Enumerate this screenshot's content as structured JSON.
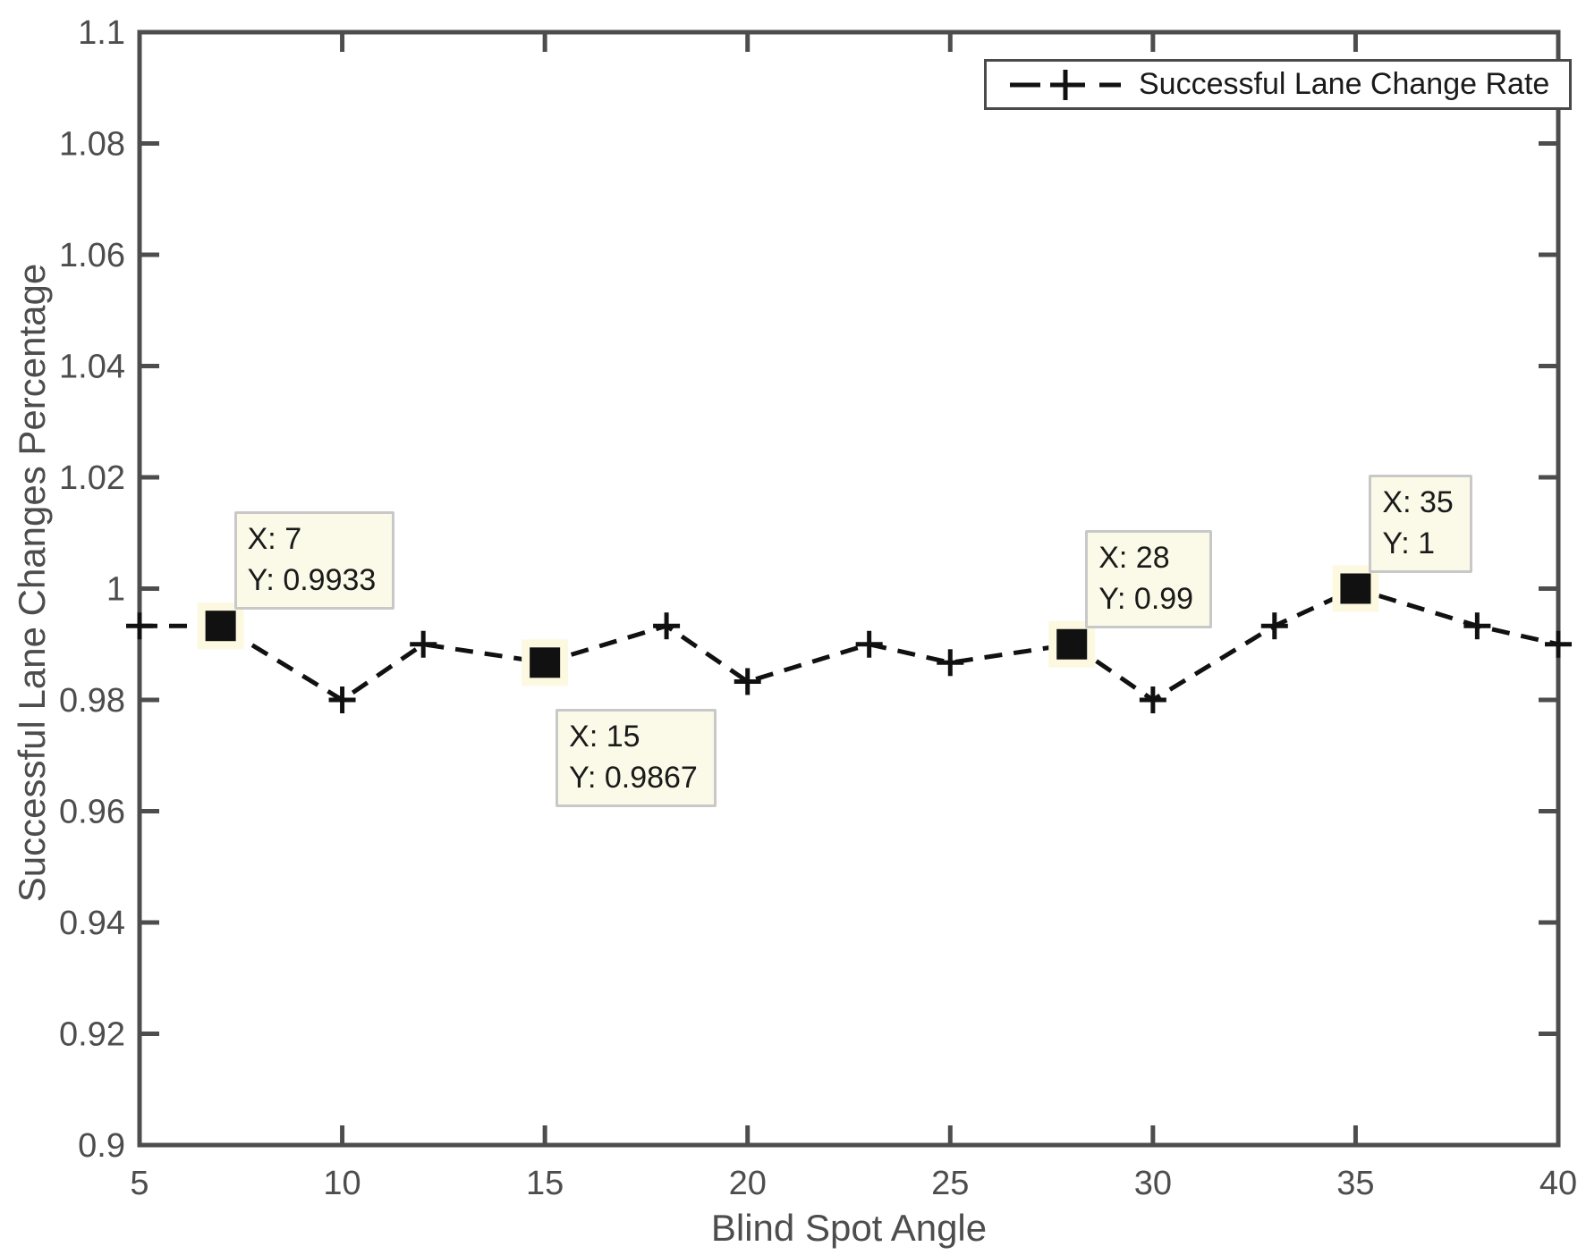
{
  "figure": {
    "background": "#ffffff",
    "axis_color": "#4d4d4d",
    "line_color": "#111111",
    "datatip_bg": "#fbfae8",
    "datatip_border": "#c8c8c8",
    "marker_highlight": "#fcf9e0"
  },
  "chart_data": {
    "type": "line",
    "title": "",
    "xlabel": "Blind Spot Angle",
    "ylabel": "Successful Lane Changes Percentage",
    "xlim": [
      5,
      40
    ],
    "ylim": [
      0.9,
      1.1
    ],
    "x_ticks": [
      5,
      10,
      15,
      20,
      25,
      30,
      35,
      40
    ],
    "x_tick_labels": [
      "5",
      "10",
      "15",
      "20",
      "25",
      "30",
      "35",
      "40"
    ],
    "y_ticks": [
      0.9,
      0.92,
      0.94,
      0.96,
      0.98,
      1.0,
      1.02,
      1.04,
      1.06,
      1.08,
      1.1
    ],
    "y_tick_labels": [
      "0.9",
      "0.92",
      "0.94",
      "0.96",
      "0.98",
      "1",
      "1.02",
      "1.04",
      "1.06",
      "1.08",
      "1.1"
    ],
    "grid": false,
    "line_style": "dashed",
    "marker": "plus",
    "legend": {
      "position": "top-right",
      "entries": [
        "Successful Lane Change Rate"
      ]
    },
    "series": [
      {
        "name": "Successful Lane Change Rate",
        "x": [
          5,
          7,
          10,
          12,
          15,
          18,
          20,
          23,
          25,
          28,
          30,
          33,
          35,
          38,
          40
        ],
        "y": [
          0.9933,
          0.9933,
          0.98,
          0.99,
          0.9867,
          0.9933,
          0.9833,
          0.99,
          0.9867,
          0.99,
          0.98,
          0.9933,
          1.0,
          0.9933,
          0.99
        ]
      }
    ],
    "datatips": [
      {
        "x": 7,
        "y": 0.9933,
        "lines": [
          "X: 7",
          "Y: 0.9933"
        ],
        "placement": "above-right"
      },
      {
        "x": 15,
        "y": 0.9867,
        "lines": [
          "X: 15",
          "Y: 0.9867"
        ],
        "placement": "below-right"
      },
      {
        "x": 28,
        "y": 0.99,
        "lines": [
          "X: 28",
          "Y: 0.99"
        ],
        "placement": "above-right"
      },
      {
        "x": 35,
        "y": 1.0,
        "lines": [
          "X: 35",
          "Y: 1"
        ],
        "placement": "above-right"
      }
    ]
  }
}
